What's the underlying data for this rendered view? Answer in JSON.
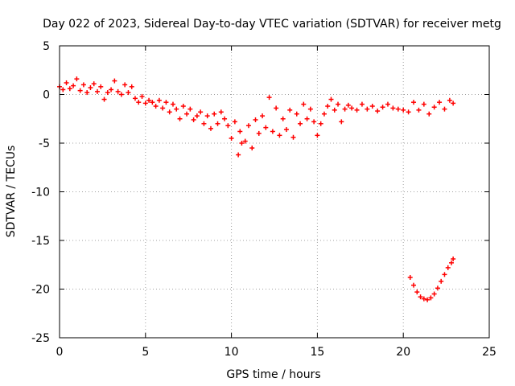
{
  "chart_data": {
    "type": "scatter",
    "title": "Day 022 of 2023, Sidereal Day-to-day VTEC variation (SDTVAR) for receiver metg",
    "xlabel": "GPS time / hours",
    "ylabel": "SDTVAR / TECUs",
    "xlim": [
      0,
      25
    ],
    "ylim": [
      -25,
      5
    ],
    "xticks": [
      0,
      5,
      10,
      15,
      20,
      25
    ],
    "yticks": [
      5,
      0,
      -5,
      -10,
      -15,
      -20,
      -25
    ],
    "grid": true,
    "marker": "+",
    "series_color": "#ff0000",
    "series": [
      {
        "name": "SDTVAR",
        "x": [
          0.0,
          0.2,
          0.4,
          0.6,
          0.8,
          1.0,
          1.2,
          1.4,
          1.6,
          1.8,
          2.0,
          2.2,
          2.4,
          2.6,
          2.8,
          3.0,
          3.2,
          3.4,
          3.6,
          3.8,
          4.0,
          4.2,
          4.4,
          4.6,
          4.8,
          5.0,
          5.2,
          5.4,
          5.6,
          5.8,
          6.0,
          6.2,
          6.4,
          6.6,
          6.8,
          7.0,
          7.2,
          7.4,
          7.6,
          7.8,
          8.0,
          8.2,
          8.4,
          8.6,
          8.8,
          9.0,
          9.2,
          9.4,
          9.6,
          9.8,
          10.0,
          10.2,
          10.4,
          10.5,
          10.6,
          10.8,
          11.0,
          11.2,
          11.4,
          11.6,
          11.8,
          12.0,
          12.2,
          12.4,
          12.6,
          12.8,
          13.0,
          13.2,
          13.4,
          13.6,
          13.8,
          14.0,
          14.2,
          14.4,
          14.6,
          14.8,
          15.0,
          15.2,
          15.4,
          15.6,
          15.8,
          16.0,
          16.2,
          16.4,
          16.6,
          16.8,
          17.0,
          17.3,
          17.6,
          17.9,
          18.2,
          18.5,
          18.8,
          19.1,
          19.4,
          19.7,
          20.0,
          20.3,
          20.6,
          20.9,
          21.2,
          21.5,
          21.8,
          22.1,
          22.4,
          22.7,
          22.9,
          20.4,
          20.6,
          20.8,
          21.0,
          21.2,
          21.4,
          21.6,
          21.8,
          22.0,
          22.2,
          22.4,
          22.6,
          22.8,
          22.9
        ],
        "y": [
          0.8,
          0.5,
          1.2,
          0.6,
          0.9,
          1.6,
          0.4,
          1.0,
          0.2,
          0.7,
          1.1,
          0.3,
          0.8,
          -0.5,
          0.2,
          0.5,
          1.4,
          0.3,
          0.0,
          1.0,
          0.2,
          0.8,
          -0.4,
          -0.8,
          -0.2,
          -0.9,
          -0.6,
          -0.8,
          -1.2,
          -0.6,
          -1.4,
          -0.8,
          -1.8,
          -1.0,
          -1.5,
          -2.5,
          -1.2,
          -2.0,
          -1.5,
          -2.6,
          -2.2,
          -1.8,
          -3.0,
          -2.2,
          -3.5,
          -2.0,
          -3.0,
          -1.8,
          -2.5,
          -3.2,
          -4.5,
          -2.8,
          -6.2,
          -3.8,
          -5.0,
          -4.8,
          -3.2,
          -5.5,
          -2.6,
          -4.0,
          -2.2,
          -3.4,
          -0.3,
          -3.8,
          -1.4,
          -4.2,
          -2.5,
          -3.6,
          -1.6,
          -4.4,
          -2.0,
          -3.0,
          -1.0,
          -2.5,
          -1.5,
          -2.8,
          -4.2,
          -3.0,
          -2.0,
          -1.2,
          -0.5,
          -1.6,
          -1.0,
          -2.8,
          -1.5,
          -1.1,
          -1.4,
          -1.6,
          -1.0,
          -1.5,
          -1.2,
          -1.7,
          -1.3,
          -1.0,
          -1.4,
          -1.5,
          -1.6,
          -1.8,
          -0.8,
          -1.6,
          -1.0,
          -2.0,
          -1.3,
          -0.8,
          -1.5,
          -0.6,
          -0.9,
          -18.8,
          -19.6,
          -20.3,
          -20.8,
          -21.0,
          -21.1,
          -20.9,
          -20.5,
          -19.9,
          -19.2,
          -18.5,
          -17.8,
          -17.3,
          -16.9
        ]
      }
    ]
  }
}
